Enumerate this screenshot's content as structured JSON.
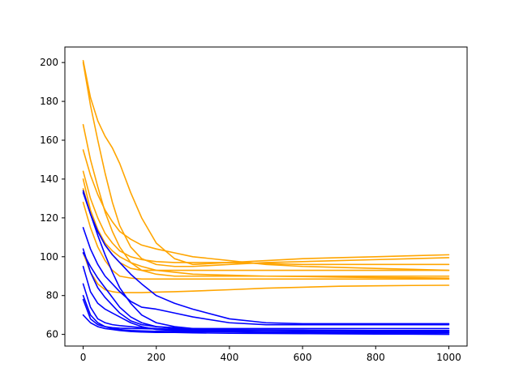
{
  "chart_data": {
    "type": "line",
    "title": "",
    "xlabel": "",
    "ylabel": "",
    "xlim": [
      -50,
      1050
    ],
    "ylim": [
      54,
      208
    ],
    "grid": false,
    "legend": "none",
    "x_ticks": [
      0,
      200,
      400,
      600,
      800,
      1000
    ],
    "y_ticks": [
      60,
      80,
      100,
      120,
      140,
      160,
      180,
      200
    ],
    "x_tick_labels": [
      "0",
      "200",
      "400",
      "600",
      "800",
      "1000"
    ],
    "y_tick_labels": [
      "60",
      "80",
      "100",
      "120",
      "140",
      "160",
      "180",
      "200"
    ],
    "colors": {
      "orange": "#ffa500",
      "blue": "#0000ff"
    },
    "x": [
      0,
      20,
      40,
      60,
      80,
      100,
      130,
      160,
      200,
      250,
      300,
      400,
      500,
      600,
      700,
      800,
      900,
      1000
    ],
    "series": [
      {
        "color": "#ffa500",
        "values": [
          201,
          182,
          170,
          162,
          156,
          148,
          133,
          120,
          107,
          99,
          96,
          97,
          98,
          99,
          99.5,
          100,
          100.5,
          101
        ]
      },
      {
        "color": "#ffa500",
        "values": [
          200,
          178,
          160,
          143,
          128,
          116,
          105,
          99,
          96,
          95,
          95,
          96,
          97,
          97.5,
          98,
          98.5,
          99,
          99.5
        ]
      },
      {
        "color": "#ffa500",
        "values": [
          168,
          150,
          136,
          123,
          113,
          105,
          97,
          93,
          91,
          90,
          90,
          90,
          90,
          90,
          90,
          90,
          90,
          90
        ]
      },
      {
        "color": "#ffa500",
        "values": [
          155,
          142,
          132,
          124,
          118,
          113,
          109,
          106,
          104,
          102,
          100,
          98,
          96,
          95,
          94.5,
          94,
          93.5,
          93
        ]
      },
      {
        "color": "#ffa500",
        "values": [
          144,
          130,
          120,
          112,
          107,
          103,
          100,
          98.5,
          97.5,
          97,
          97,
          97,
          96.5,
          96,
          96,
          96,
          96,
          96
        ]
      },
      {
        "color": "#ffa500",
        "values": [
          140,
          124,
          114,
          107,
          103,
          100,
          97,
          95,
          93,
          92,
          91,
          90.5,
          90,
          89.8,
          89.5,
          89.3,
          89.2,
          89
        ]
      },
      {
        "color": "#ffa500",
        "values": [
          135,
          122,
          113,
          106,
          101,
          97,
          94,
          93,
          93,
          93,
          93,
          93,
          93,
          93,
          93,
          93,
          93,
          93
        ]
      },
      {
        "color": "#ffa500",
        "values": [
          128,
          115,
          105,
          98,
          93,
          90,
          89,
          88.5,
          88.5,
          88.5,
          88.5,
          88.5,
          88.5,
          88.5,
          88.5,
          88.5,
          88.5,
          88.5
        ]
      },
      {
        "color": "#ffa500",
        "values": [
          102,
          92,
          86,
          83,
          82,
          81.5,
          81.5,
          81.5,
          81.8,
          82,
          82.3,
          83,
          83.8,
          84.3,
          84.8,
          85,
          85.2,
          85.3
        ]
      },
      {
        "color": "#0000ff",
        "values": [
          134,
          122,
          111,
          101,
          92,
          84,
          76,
          70,
          66,
          64,
          63,
          63,
          63,
          63,
          63,
          63,
          63,
          63
        ]
      },
      {
        "color": "#0000ff",
        "values": [
          133,
          122,
          113,
          106,
          101,
          97,
          91,
          86,
          80,
          76,
          73,
          68,
          66,
          65.5,
          65.5,
          65.5,
          65.5,
          65.5
        ]
      },
      {
        "color": "#0000ff",
        "values": [
          115,
          104,
          96,
          90,
          86,
          82,
          77,
          74,
          73,
          71,
          69,
          66,
          65,
          65,
          65,
          65,
          65,
          65
        ]
      },
      {
        "color": "#0000ff",
        "values": [
          104,
          92,
          84,
          79,
          75,
          71,
          67,
          65,
          64,
          63.5,
          63,
          62.5,
          62,
          62,
          62,
          62,
          62,
          62
        ]
      },
      {
        "color": "#0000ff",
        "values": [
          102,
          95,
          89,
          84,
          79,
          74,
          69,
          66,
          64,
          63,
          62.5,
          62,
          62,
          61.8,
          61.7,
          61.6,
          61.5,
          61.5
        ]
      },
      {
        "color": "#0000ff",
        "values": [
          95,
          82,
          76,
          73,
          71,
          69,
          66,
          64,
          62.5,
          62,
          61.8,
          61.5,
          61.3,
          61.2,
          61.1,
          61,
          61,
          61
        ]
      },
      {
        "color": "#0000ff",
        "values": [
          86,
          74,
          68,
          66,
          65,
          64.5,
          64,
          63.5,
          63,
          62.5,
          62,
          61.5,
          61,
          60.8,
          60.6,
          60.5,
          60.4,
          60.3
        ]
      },
      {
        "color": "#0000ff",
        "values": [
          80,
          70,
          66,
          64,
          63,
          62.5,
          62,
          61.8,
          61.6,
          61.5,
          61.4,
          61.3,
          61.2,
          61.1,
          61,
          61,
          61,
          61
        ]
      },
      {
        "color": "#0000ff",
        "values": [
          78,
          68,
          65,
          64,
          63.5,
          63.2,
          63,
          63,
          62.8,
          62.6,
          62.5,
          62.4,
          62.3,
          62.2,
          62.1,
          62,
          62,
          62
        ]
      },
      {
        "color": "#0000ff",
        "values": [
          70,
          66,
          64,
          63,
          62.5,
          62,
          61.5,
          61.2,
          61,
          61,
          60.8,
          60.6,
          60.5,
          60.4,
          60.3,
          60.2,
          60.1,
          60
        ]
      }
    ]
  }
}
